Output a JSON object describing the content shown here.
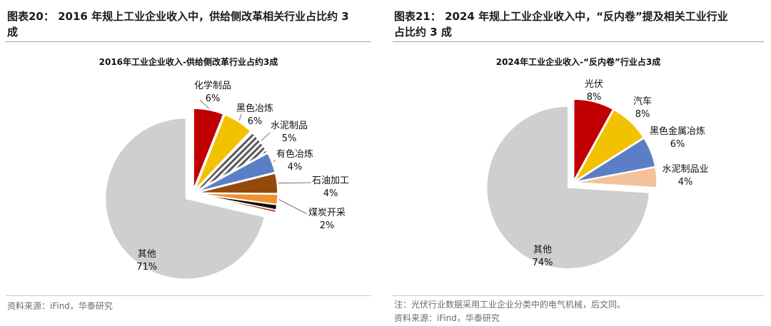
{
  "left": {
    "figure_label": "图表20：",
    "figure_title_line1": "2016 年规上工业企业收入中，供给侧改革相关行业占比约 3",
    "figure_title_line2": "成",
    "source": "资料来源：iFind，华泰研究"
  },
  "right": {
    "figure_label": "图表21：",
    "figure_title_line1": "2024 年规上工业企业收入中，“反内卷”提及相关工业行业",
    "figure_title_line2": "占比约 3 成",
    "note": "注：光伏行业数据采用工业企业分类中的电气机械，后文同。",
    "source": "资料来源：iFind，华泰研究"
  },
  "chart_data": [
    {
      "type": "pie",
      "title": "2016年工业企业收入-供给侧改革行业占约3成",
      "slices": [
        {
          "label": "化学制品",
          "value": 6,
          "display": "6%",
          "color": "#c00000",
          "pattern": "solid"
        },
        {
          "label": "黑色冶炼",
          "value": 6,
          "display": "6%",
          "color": "#f2c200",
          "pattern": "solid"
        },
        {
          "label": "水泥制品",
          "value": 5,
          "display": "5%",
          "color": "#595959",
          "pattern": "hatch"
        },
        {
          "label": "有色冶炼",
          "value": 4,
          "display": "4%",
          "color": "#5b7fc7",
          "pattern": "solid"
        },
        {
          "label": "石油加工",
          "value": 4,
          "display": "4%",
          "color": "#944a0c",
          "pattern": "solid"
        },
        {
          "label": "煤炭开采",
          "value": 2,
          "display": "2%",
          "color": "#f0922e",
          "pattern": "solid"
        },
        {
          "label": "",
          "value": 1,
          "display": "",
          "color": "#111111",
          "pattern": "solid"
        },
        {
          "label": "",
          "value": 0.5,
          "display": "",
          "color": "#c0392b",
          "pattern": "solid"
        },
        {
          "label": "其他",
          "value": 71,
          "display": "71%",
          "color": "#cfcfcf",
          "pattern": "solid"
        }
      ]
    },
    {
      "type": "pie",
      "title": "2024年工业企业收入-“反内卷”行业占3成",
      "slices": [
        {
          "label": "光伏",
          "value": 8,
          "display": "8%",
          "color": "#c00000"
        },
        {
          "label": "汽车",
          "value": 8,
          "display": "8%",
          "color": "#f2c200"
        },
        {
          "label": "黑色金属冶炼",
          "value": 6,
          "display": "6%",
          "color": "#5b7fc7"
        },
        {
          "label": "水泥制品业",
          "value": 4,
          "display": "4%",
          "color": "#f4c29a"
        },
        {
          "label": "其他",
          "value": 74,
          "display": "74%",
          "color": "#cfcfcf"
        }
      ]
    }
  ]
}
